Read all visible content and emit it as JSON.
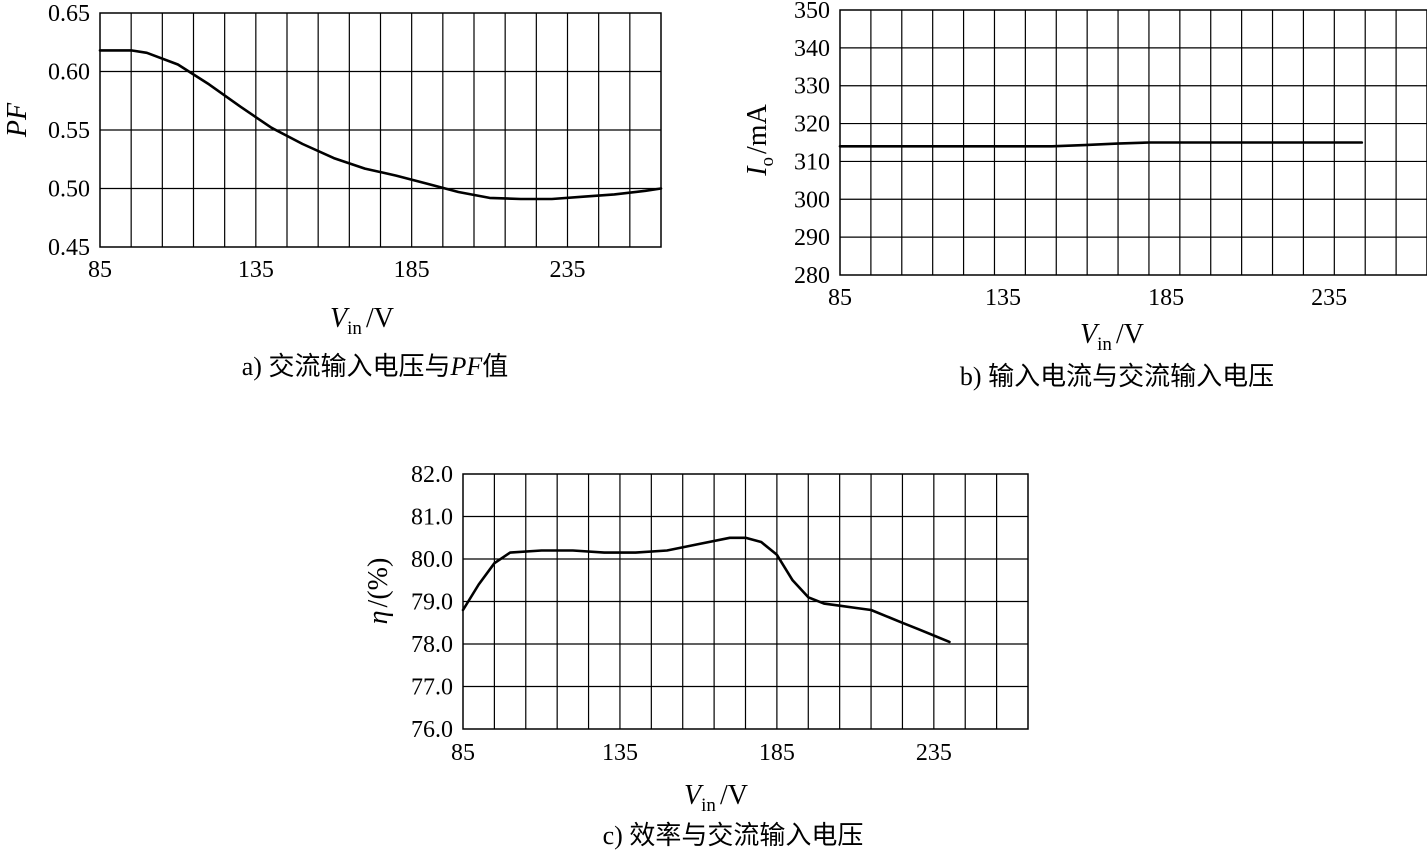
{
  "chart_data": [
    {
      "type": "line",
      "caption": "a) 交流输入电压与PF值",
      "caption_parts": {
        "prefix": "a) 交流输入电压与",
        "italic": "PF",
        "suffix": "值"
      },
      "xlabel": {
        "main": "V",
        "sub": "in",
        "unit": "/V"
      },
      "ylabel": {
        "main": "PF"
      },
      "xlim": [
        85,
        265
      ],
      "ylim": [
        0.45,
        0.65
      ],
      "x_ticks": [
        "85",
        "135",
        "185",
        "235"
      ],
      "y_ticks": [
        "0.45",
        "0.50",
        "0.55",
        "0.60",
        "0.65"
      ],
      "grid": true,
      "series": [
        {
          "x": [
            85,
            95,
            100,
            110,
            120,
            130,
            140,
            150,
            160,
            170,
            180,
            190,
            200,
            210,
            220,
            230,
            240,
            250,
            260,
            265
          ],
          "y": [
            0.618,
            0.618,
            0.616,
            0.606,
            0.589,
            0.57,
            0.552,
            0.538,
            0.526,
            0.517,
            0.511,
            0.504,
            0.497,
            0.492,
            0.491,
            0.491,
            0.493,
            0.495,
            0.498,
            0.5
          ]
        }
      ]
    },
    {
      "type": "line",
      "caption": "b) 输入电流与交流输入电压",
      "xlabel": {
        "main": "V",
        "sub": "in",
        "unit": "/V"
      },
      "ylabel": {
        "main": "I",
        "sub": "o",
        "unit": "/mA"
      },
      "xlim": [
        85,
        265
      ],
      "ylim": [
        280,
        350
      ],
      "x_ticks": [
        "85",
        "135",
        "185",
        "235"
      ],
      "y_ticks": [
        "280",
        "290",
        "300",
        "310",
        "320",
        "330",
        "340",
        "350"
      ],
      "grid": true,
      "series": [
        {
          "x": [
            85,
            120,
            150,
            160,
            170,
            180,
            200,
            220,
            240,
            245
          ],
          "y": [
            314,
            314,
            314,
            314.3,
            314.7,
            315,
            315,
            315,
            315,
            315
          ]
        }
      ]
    },
    {
      "type": "line",
      "caption": "c) 效率与交流输入电压",
      "xlabel": {
        "main": "V",
        "sub": "in",
        "unit": "/V"
      },
      "ylabel": {
        "main": "η",
        "unit": "/(%)"
      },
      "xlim": [
        85,
        265
      ],
      "ylim": [
        76.0,
        82.0
      ],
      "x_ticks": [
        "85",
        "135",
        "185",
        "235"
      ],
      "y_ticks": [
        "76.0",
        "77.0",
        "78.0",
        "79.0",
        "80.0",
        "81.0",
        "82.0"
      ],
      "grid": true,
      "series": [
        {
          "x": [
            85,
            90,
            95,
            100,
            110,
            120,
            130,
            140,
            150,
            160,
            170,
            175,
            180,
            185,
            190,
            195,
            200,
            205,
            210,
            215,
            220,
            225,
            230,
            235,
            240
          ],
          "y": [
            78.8,
            79.4,
            79.9,
            80.15,
            80.2,
            80.2,
            80.15,
            80.15,
            80.2,
            80.35,
            80.5,
            80.5,
            80.4,
            80.1,
            79.5,
            79.1,
            78.95,
            78.9,
            78.85,
            78.8,
            78.65,
            78.5,
            78.35,
            78.2,
            78.05
          ]
        }
      ]
    }
  ]
}
